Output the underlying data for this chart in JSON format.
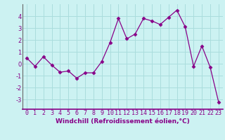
{
  "x": [
    0,
    1,
    2,
    3,
    4,
    5,
    6,
    7,
    8,
    9,
    10,
    11,
    12,
    13,
    14,
    15,
    16,
    17,
    18,
    19,
    20,
    21,
    22,
    23
  ],
  "y": [
    0.5,
    -0.2,
    0.6,
    -0.1,
    -0.7,
    -0.6,
    -1.2,
    -0.75,
    -0.75,
    0.2,
    1.8,
    3.8,
    2.1,
    2.5,
    3.8,
    3.6,
    3.3,
    3.9,
    4.5,
    3.1,
    -0.2,
    1.5,
    -0.3,
    -3.2
  ],
  "line_color": "#880088",
  "marker": "D",
  "marker_size": 2.5,
  "bg_color": "#ccf2f2",
  "grid_color": "#aadddd",
  "xlabel": "Windchill (Refroidissement éolien,°C)",
  "ylim": [
    -3.8,
    5.0
  ],
  "xlim": [
    -0.5,
    23.5
  ],
  "yticks": [
    -3,
    -2,
    -1,
    0,
    1,
    2,
    3,
    4
  ],
  "xticks": [
    0,
    1,
    2,
    3,
    4,
    5,
    6,
    7,
    8,
    9,
    10,
    11,
    12,
    13,
    14,
    15,
    16,
    17,
    18,
    19,
    20,
    21,
    22,
    23
  ],
  "xlabel_fontsize": 6.5,
  "tick_fontsize": 6,
  "label_color": "#880088"
}
